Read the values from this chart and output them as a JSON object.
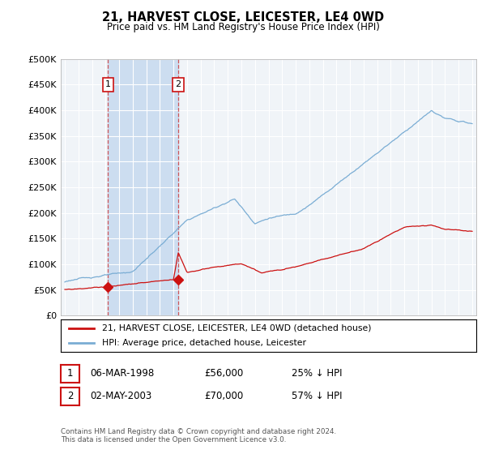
{
  "title": "21, HARVEST CLOSE, LEICESTER, LE4 0WD",
  "subtitle": "Price paid vs. HM Land Registry's House Price Index (HPI)",
  "ylabel_ticks": [
    "£0",
    "£50K",
    "£100K",
    "£150K",
    "£200K",
    "£250K",
    "£300K",
    "£350K",
    "£400K",
    "£450K",
    "£500K"
  ],
  "ytick_values": [
    0,
    50000,
    100000,
    150000,
    200000,
    250000,
    300000,
    350000,
    400000,
    450000,
    500000
  ],
  "xlim_start": 1994.7,
  "xlim_end": 2025.3,
  "ylim_min": 0,
  "ylim_max": 500000,
  "hpi_color": "#7aadd4",
  "price_color": "#cc1111",
  "sale1_date": 1998.18,
  "sale1_price": 56000,
  "sale2_date": 2003.35,
  "sale2_price": 70000,
  "legend_line1": "21, HARVEST CLOSE, LEICESTER, LE4 0WD (detached house)",
  "legend_line2": "HPI: Average price, detached house, Leicester",
  "footnote": "Contains HM Land Registry data © Crown copyright and database right 2024.\nThis data is licensed under the Open Government Licence v3.0.",
  "background_color": "#ffffff",
  "plot_bg_color": "#f0f4f8",
  "grid_color": "#ffffff",
  "highlight_color": "#ccddf0",
  "spine_color": "#aaaaaa"
}
